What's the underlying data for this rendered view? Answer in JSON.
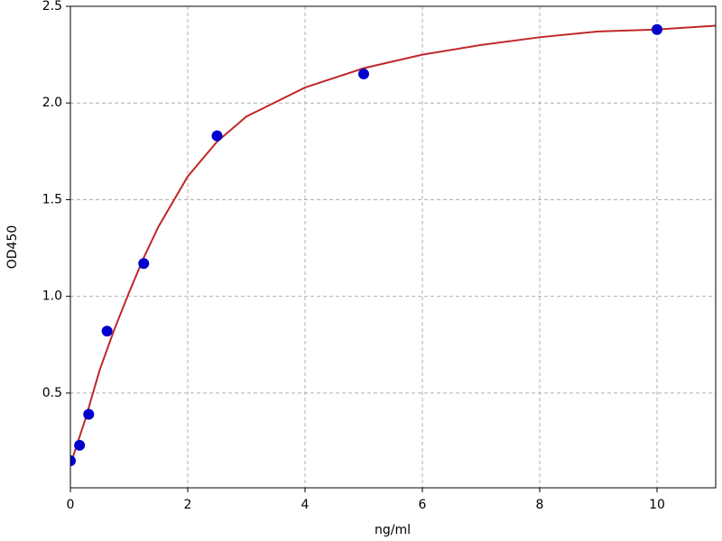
{
  "chart_data": {
    "type": "scatter",
    "xlabel": "ng/ml",
    "ylabel": "OD450",
    "xlim": [
      0,
      11
    ],
    "ylim": [
      0.01,
      2.5
    ],
    "xticks": [
      0,
      2,
      4,
      6,
      8,
      10
    ],
    "yticks": [
      0.5,
      {
        "value": 1.0,
        "label": "1.0"
      },
      1.5,
      {
        "value": 2.0,
        "label": "2.0"
      },
      2.5
    ],
    "grid": true,
    "series": [
      {
        "type": "scatter",
        "color": "#0000cc",
        "x": [
          0,
          0.156,
          0.312,
          0.625,
          1.25,
          2.5,
          5,
          10
        ],
        "values": [
          0.15,
          0.23,
          0.39,
          0.82,
          1.17,
          1.83,
          2.15,
          2.38
        ]
      },
      {
        "type": "line",
        "color": "#c0282a",
        "x": [
          0,
          0.25,
          0.5,
          0.75,
          1,
          1.25,
          1.5,
          2,
          2.5,
          3,
          4,
          5,
          6,
          7,
          8,
          9,
          10,
          11
        ],
        "values": [
          0.13,
          0.36,
          0.62,
          0.83,
          1.02,
          1.2,
          1.36,
          1.62,
          1.8,
          1.93,
          2.08,
          2.18,
          2.25,
          2.3,
          2.34,
          2.37,
          2.38,
          2.4
        ]
      }
    ]
  }
}
